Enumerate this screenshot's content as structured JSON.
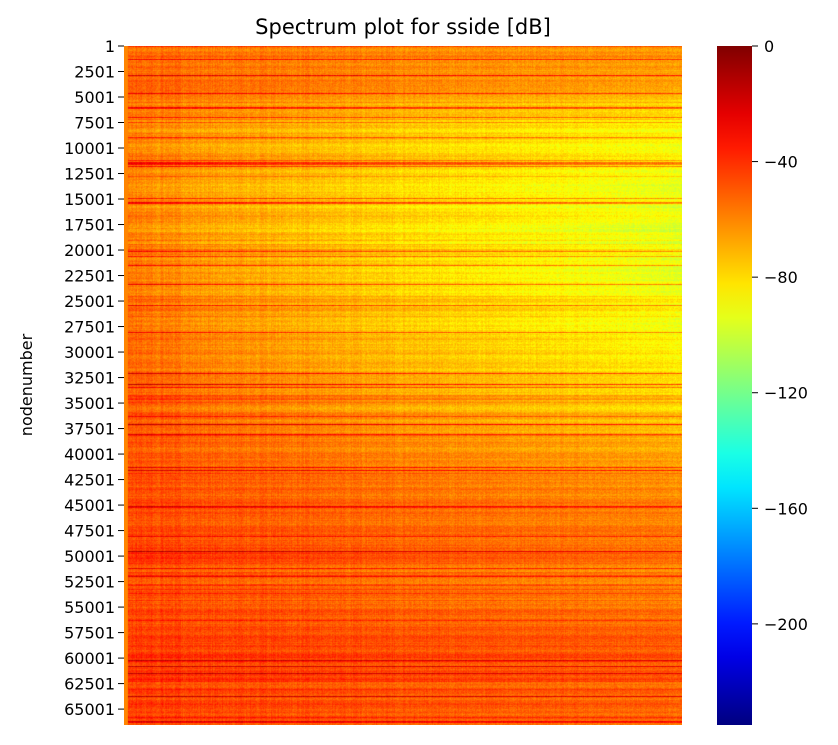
{
  "chart_data": {
    "type": "heatmap",
    "title": "Spectrum plot for sside [dB]",
    "ylabel": "nodenumber",
    "xlabel": "",
    "y_tick_labels": [
      "1",
      "2501",
      "5001",
      "7501",
      "10001",
      "12501",
      "15001",
      "17501",
      "20001",
      "22501",
      "25001",
      "27501",
      "30001",
      "32501",
      "35001",
      "37501",
      "40001",
      "42501",
      "45001",
      "47501",
      "50001",
      "52501",
      "55001",
      "57501",
      "60001",
      "62501",
      "65001"
    ],
    "y_range": [
      1,
      66560
    ],
    "colorbar": {
      "colormap": "jet",
      "range": [
        -235,
        0
      ],
      "ticks": [
        0,
        -40,
        -80,
        -120,
        -160,
        -200
      ],
      "tick_labels": [
        "0",
        "−40",
        "−80",
        "−120",
        "−160",
        "−200"
      ]
    },
    "row_profile_db": {
      "nodenumber": [
        1,
        2501,
        5001,
        7501,
        10001,
        12501,
        15001,
        17501,
        20001,
        22501,
        25001,
        27501,
        30001,
        32501,
        35001,
        37501,
        40001,
        42501,
        45001,
        47501,
        50001,
        52501,
        55001,
        57501,
        60001,
        62501,
        65001
      ],
      "left_edge_db": [
        -50,
        -52,
        -55,
        -56,
        -57,
        -56,
        -57,
        -57,
        -56,
        -55,
        -54,
        -53,
        -51,
        -48,
        -47,
        -48,
        -46,
        -44,
        -45,
        -45,
        -42,
        -45,
        -45,
        -44,
        -41,
        -42,
        -44
      ],
      "right_edge_db": [
        -60,
        -66,
        -76,
        -84,
        -88,
        -90,
        -92,
        -94,
        -93,
        -96,
        -88,
        -92,
        -86,
        -80,
        -78,
        -74,
        -66,
        -62,
        -60,
        -58,
        -58,
        -58,
        -58,
        -52,
        -50,
        -52,
        -54
      ]
    }
  }
}
